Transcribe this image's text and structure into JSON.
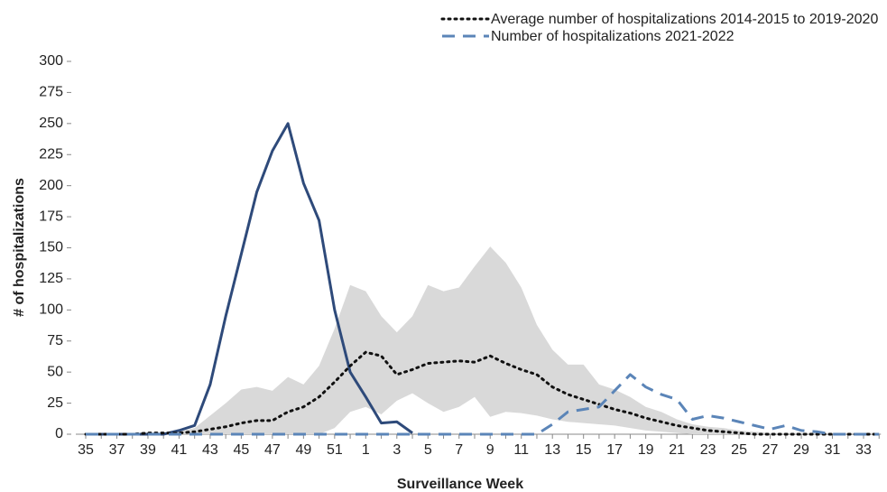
{
  "chart_data": {
    "type": "line",
    "xlabel": "Surveillance Week",
    "ylabel": "# of hospitalizations",
    "categories": [
      "35",
      null,
      "37",
      null,
      "39",
      null,
      "41",
      null,
      "43",
      null,
      "45",
      null,
      "47",
      null,
      "49",
      null,
      "51",
      null,
      "1",
      null,
      "3",
      null,
      "5",
      null,
      "7",
      null,
      "9",
      null,
      "11",
      null,
      "13",
      null,
      "15",
      null,
      "17",
      null,
      "19",
      null,
      "21",
      null,
      "23",
      null,
      "25",
      null,
      "27",
      null,
      "29",
      null,
      "31",
      null,
      "33",
      null
    ],
    "ylim": [
      0,
      300
    ],
    "yticks": [
      0,
      25,
      50,
      75,
      100,
      125,
      150,
      175,
      200,
      225,
      250,
      275,
      300
    ],
    "band": {
      "color": "#d9d9d9",
      "lower": [
        0,
        0,
        0,
        0,
        0,
        0,
        0,
        0,
        0,
        0,
        0,
        0,
        0,
        0,
        0,
        0,
        5,
        18,
        22,
        16,
        27,
        33,
        25,
        18,
        22,
        30,
        14,
        18,
        17,
        15,
        12,
        10,
        9,
        8,
        7,
        5,
        3,
        2,
        1,
        0,
        0,
        0,
        0,
        0,
        0,
        0,
        0,
        0,
        0,
        0,
        0,
        0
      ],
      "upper": [
        0,
        0,
        0,
        0,
        1,
        1,
        2,
        5,
        15,
        25,
        36,
        38,
        35,
        46,
        40,
        55,
        85,
        120,
        115,
        95,
        82,
        95,
        120,
        115,
        118,
        135,
        151,
        138,
        118,
        88,
        68,
        56,
        56,
        40,
        36,
        30,
        22,
        18,
        12,
        8,
        6,
        5,
        3,
        2,
        1,
        1,
        1,
        1,
        1,
        1,
        1,
        1
      ]
    },
    "series": [
      {
        "color": "#2e4a7a",
        "style": "solid",
        "values": [
          0,
          0,
          0,
          0,
          0,
          0,
          3,
          7,
          40,
          95,
          145,
          195,
          228,
          250,
          202,
          172,
          100,
          50,
          30,
          9,
          10,
          1,
          null,
          null,
          null,
          null,
          null,
          null,
          null,
          null,
          null,
          null,
          null,
          null,
          null,
          null,
          null,
          null,
          null,
          null,
          null,
          null,
          null,
          null,
          null,
          null,
          null,
          null,
          null,
          null,
          null,
          null
        ]
      },
      {
        "name": "Average number of hospitalizations 2014-2015 to 2019-2020",
        "color": "#111111",
        "style": "dotted",
        "values": [
          0,
          0,
          0,
          0,
          1,
          1,
          1,
          2,
          4,
          6,
          9,
          11,
          11,
          18,
          22,
          30,
          42,
          55,
          66,
          63,
          48,
          52,
          57,
          58,
          59,
          58,
          63,
          57,
          52,
          48,
          38,
          32,
          28,
          24,
          20,
          17,
          13,
          10,
          7,
          5,
          3,
          2,
          1,
          0,
          0,
          0,
          0,
          0,
          0,
          0,
          0,
          0
        ]
      },
      {
        "name": "Number of hospitalizations 2021-2022",
        "color": "#5b85b8",
        "style": "dashed",
        "values": [
          0,
          0,
          0,
          0,
          0,
          0,
          0,
          0,
          0,
          0,
          0,
          0,
          0,
          0,
          0,
          0,
          0,
          0,
          0,
          0,
          0,
          0,
          0,
          0,
          0,
          0,
          0,
          0,
          0,
          0,
          8,
          18,
          20,
          22,
          35,
          48,
          38,
          32,
          28,
          12,
          15,
          13,
          10,
          7,
          4,
          7,
          3,
          2,
          0,
          0,
          0,
          0
        ]
      }
    ]
  }
}
